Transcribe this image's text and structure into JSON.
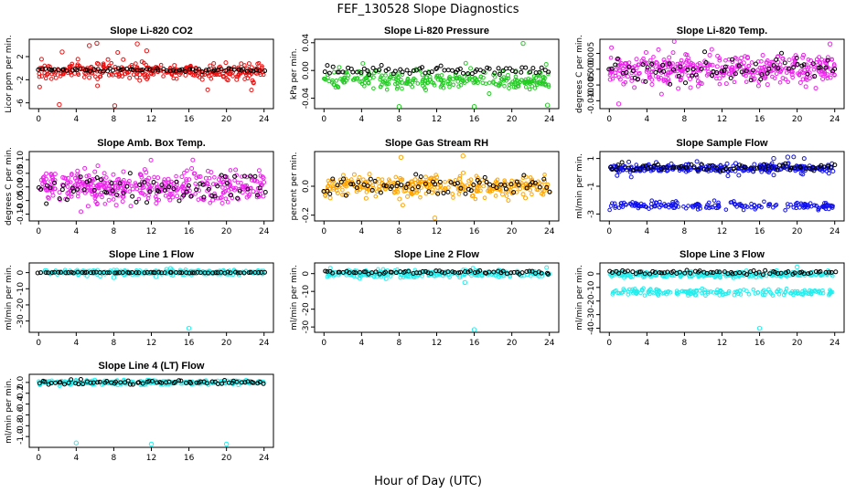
{
  "figure": {
    "title": "FEF_130528  Slope Diagnostics",
    "xlabel": "Hour of Day (UTC)"
  },
  "chart_data": [
    {
      "type": "scatter",
      "title": "Slope Li-820 CO2",
      "ylabel": "Licor ppm per min.",
      "color": "#ee1111",
      "ylim": [
        -7,
        5
      ],
      "yticks": [
        -6,
        -2,
        2
      ],
      "xticks": [
        0,
        4,
        8,
        12,
        16,
        20,
        24
      ],
      "xlim": [
        -1,
        25
      ],
      "bulk": {
        "center": -0.5,
        "spread": 1.2
      },
      "sparse": {
        "center": -0.6,
        "spread": 2.5,
        "frac": 0.25
      },
      "overlay": {
        "center": -0.3,
        "spread": 0.3
      },
      "outliers": [
        [
          2.5,
          2.8
        ],
        [
          5.4,
          3.9
        ],
        [
          6.2,
          4.3
        ],
        [
          8.1,
          -6.5
        ],
        [
          10.5,
          4.2
        ],
        [
          2.2,
          -6.3
        ],
        [
          11.5,
          3.0
        ]
      ]
    },
    {
      "type": "scatter",
      "title": "Slope Li-820 Pressure",
      "ylabel": "kPa per min.",
      "color": "#22cc22",
      "ylim": [
        -0.055,
        0.045
      ],
      "yticks": [
        -0.04,
        0.0,
        0.04
      ],
      "tickfmt": 2,
      "xticks": [
        0,
        4,
        8,
        12,
        16,
        20,
        24
      ],
      "xlim": [
        -1,
        25
      ],
      "bulk": {
        "center": -0.015,
        "spread": 0.012
      },
      "sparse": {
        "center": -0.01,
        "spread": 0.02,
        "frac": 0.1
      },
      "overlay": {
        "center": 0.0,
        "spread": 0.006
      },
      "outliers": [
        [
          8.0,
          -0.052
        ],
        [
          16.0,
          -0.052
        ],
        [
          21.2,
          0.039
        ],
        [
          23.8,
          -0.05
        ]
      ]
    },
    {
      "type": "scatter",
      "title": "Slope Li-820 Temp.",
      "ylabel": "degrees C per min.",
      "color": "#ee22ee",
      "ylim": [
        -0.0125,
        0.0095
      ],
      "yticks": [
        -0.01,
        -0.005,
        0.0,
        0.005
      ],
      "tickfmt": 3,
      "xticks": [
        0,
        4,
        8,
        12,
        16,
        20,
        24
      ],
      "xlim": [
        -1,
        25
      ],
      "bulk": {
        "center": 0.0,
        "spread": 0.004
      },
      "sparse": {
        "center": 0.0,
        "spread": 0.006,
        "frac": 0.5
      },
      "overlay": {
        "center": 0.0,
        "spread": 0.004
      },
      "outliers": [
        [
          23.5,
          0.008
        ],
        [
          1.0,
          -0.011
        ]
      ]
    },
    {
      "type": "scatter",
      "title": "Slope Amb. Box Temp.",
      "ylabel": "degrees C per min.",
      "color": "#ee22ee",
      "ylim": [
        -0.125,
        0.13
      ],
      "yticks": [
        -0.1,
        -0.05,
        0.0,
        0.05,
        0.1
      ],
      "tickfmt": 2,
      "xticks": [
        0,
        4,
        8,
        12,
        16,
        20,
        24
      ],
      "xlim": [
        -1,
        25
      ],
      "bulk": {
        "center": 0.0,
        "spread": 0.05
      },
      "sparse": {
        "center": 0.0,
        "spread": 0.07,
        "frac": 0.5
      },
      "overlay": {
        "center": 0.0,
        "spread": 0.05
      },
      "outliers": []
    },
    {
      "type": "scatter",
      "title": "Slope Gas Stream RH",
      "ylabel": "percent per min.",
      "color": "#ffa500",
      "ylim": [
        -0.24,
        0.24
      ],
      "yticks": [
        -0.2,
        0.0
      ],
      "tickfmt": 1,
      "xticks": [
        0,
        4,
        8,
        12,
        16,
        20,
        24
      ],
      "xlim": [
        -1,
        25
      ],
      "bulk": {
        "center": 0.0,
        "spread": 0.07
      },
      "sparse": {
        "center": 0.0,
        "spread": 0.1,
        "frac": 0.2
      },
      "overlay": {
        "center": 0.0,
        "spread": 0.06
      },
      "outliers": [
        [
          8.2,
          0.2
        ],
        [
          11.8,
          -0.22
        ],
        [
          14.8,
          0.21
        ]
      ]
    },
    {
      "type": "scatter",
      "title": "Slope Sample Flow",
      "ylabel": "ml/min per min.",
      "color": "#1111ee",
      "ylim": [
        -3.5,
        1.5
      ],
      "yticks": [
        -3,
        -1,
        1
      ],
      "xticks": [
        0,
        4,
        8,
        12,
        16,
        20,
        24
      ],
      "xlim": [
        -1,
        25
      ],
      "bulk": {
        "center": 0.3,
        "spread": 0.25
      },
      "sparse": {
        "center": 0.3,
        "spread": 0.6,
        "frac": 0.2
      },
      "overlay": {
        "center": 0.35,
        "spread": 0.25
      },
      "band2": {
        "center": -2.4,
        "spread": 0.3
      },
      "outliers": [
        [
          17.5,
          1.0
        ],
        [
          19.0,
          1.1
        ]
      ]
    },
    {
      "type": "scatter",
      "title": "Slope Line 1 Flow",
      "ylabel": "ml/min per min.",
      "color": "#22eeee",
      "ylim": [
        -37,
        6
      ],
      "yticks": [
        -30,
        -20,
        -10,
        0
      ],
      "xticks": [
        0,
        4,
        8,
        12,
        16,
        20,
        24
      ],
      "xlim": [
        -1,
        25
      ],
      "bulk": {
        "center": 0.2,
        "spread": 1.5
      },
      "sparse": {
        "center": 0.0,
        "spread": 2.5,
        "frac": 0.1
      },
      "overlay": {
        "center": 0.0,
        "spread": 0.3
      },
      "outliers": [
        [
          16.0,
          -34.5
        ],
        [
          8.0,
          -3.0
        ],
        [
          12.5,
          -2.5
        ]
      ]
    },
    {
      "type": "scatter",
      "title": "Slope Line 2 Flow",
      "ylabel": "ml/min per min.",
      "color": "#22eeee",
      "ylim": [
        -33,
        6
      ],
      "yticks": [
        -30,
        -20,
        -10,
        0
      ],
      "xticks": [
        0,
        4,
        8,
        12,
        16,
        20,
        24
      ],
      "xlim": [
        -1,
        25
      ],
      "bulk": {
        "center": 0.0,
        "spread": 2.0
      },
      "sparse": {
        "center": 0.0,
        "spread": 3.0,
        "frac": 0.1
      },
      "overlay": {
        "center": 0.8,
        "spread": 1.0
      },
      "outliers": [
        [
          16.0,
          -31.5
        ],
        [
          15.0,
          -5.0
        ]
      ]
    },
    {
      "type": "scatter",
      "title": "Slope Line 3 Flow",
      "ylabel": "ml/min per min.",
      "color": "#22eeee",
      "ylim": [
        -43,
        8
      ],
      "yticks": [
        -40,
        -30,
        -20,
        -10,
        0
      ],
      "xticks": [
        0,
        4,
        8,
        12,
        16,
        20,
        24
      ],
      "xlim": [
        -1,
        25
      ],
      "bulk": {
        "center": -0.5,
        "spread": 2.0
      },
      "sparse": {
        "center": 0.0,
        "spread": 3.0,
        "frac": 0.1
      },
      "overlay": {
        "center": 1.0,
        "spread": 1.5
      },
      "band2": {
        "center": -13.5,
        "spread": 2.5
      },
      "outliers": [
        [
          16.0,
          -40.0
        ],
        [
          20.0,
          5.0
        ]
      ]
    },
    {
      "type": "scatter",
      "title": "Slope Line 4 (LT) Flow",
      "ylabel": "ml/min per min.",
      "color": "#22eeee",
      "ylim": [
        -1.2,
        0.15
      ],
      "yticks": [
        -1.0,
        -0.8,
        -0.6,
        -0.4,
        -0.2,
        0.0
      ],
      "tickfmt": 1,
      "xticks": [
        0,
        4,
        8,
        12,
        16,
        20,
        24
      ],
      "xlim": [
        -1,
        25
      ],
      "bulk": {
        "center": 0.0,
        "spread": 0.04
      },
      "sparse": {
        "center": 0.0,
        "spread": 0.05,
        "frac": 0.1
      },
      "overlay": {
        "center": 0.0,
        "spread": 0.04
      },
      "outliers": [
        [
          4.0,
          -1.12
        ],
        [
          12.0,
          -1.14
        ],
        [
          20.0,
          -1.14
        ]
      ]
    }
  ]
}
